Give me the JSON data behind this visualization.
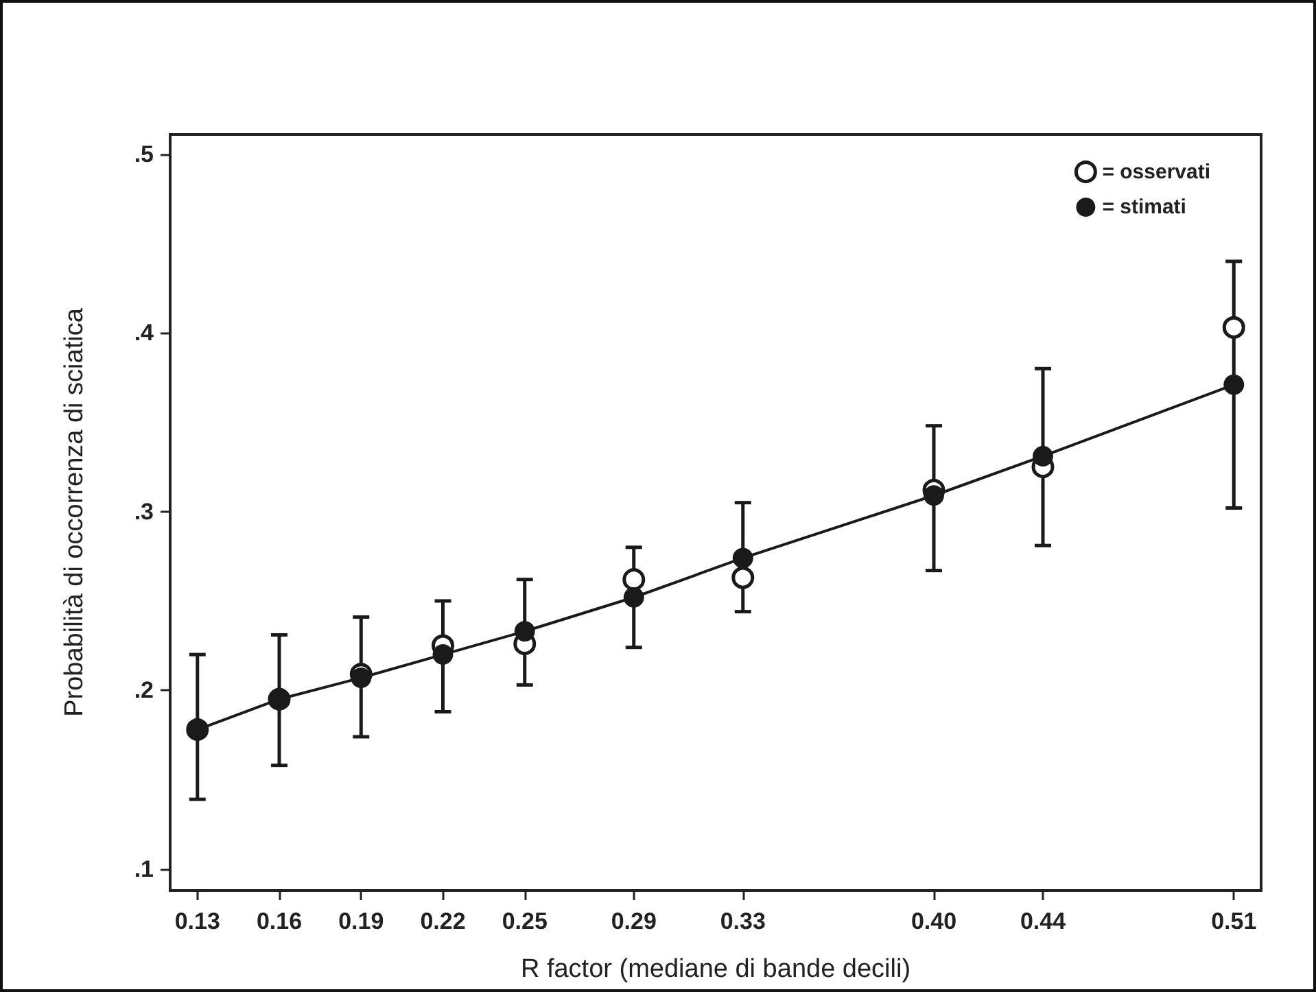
{
  "chart_data": {
    "type": "line",
    "xlabel": "R factor (mediane di bande decili)",
    "ylabel": "Probabilità di occorrenza di sciatica",
    "x": [
      0.13,
      0.16,
      0.19,
      0.22,
      0.25,
      0.29,
      0.33,
      0.4,
      0.44,
      0.51
    ],
    "series": [
      {
        "name": "= osservati",
        "type": "scatter",
        "color": "#1a1a1a",
        "values": [
          0.178,
          0.195,
          0.209,
          0.225,
          0.226,
          0.262,
          0.263,
          0.312,
          0.325,
          0.403
        ],
        "errors": [
          [
            0.139,
            0.22
          ],
          [
            0.158,
            0.231
          ],
          [
            0.174,
            0.241
          ],
          [
            0.188,
            0.25
          ],
          [
            0.203,
            0.262
          ],
          [
            0.224,
            0.28
          ],
          [
            0.244,
            0.305
          ],
          [
            0.267,
            0.348
          ],
          [
            0.281,
            0.38
          ],
          [
            0.302,
            0.44
          ]
        ]
      },
      {
        "name": "= stimati",
        "color": "#1a1a1a",
        "values": [
          0.178,
          0.195,
          0.207,
          0.22,
          0.233,
          0.252,
          0.274,
          0.309,
          0.331,
          0.371
        ]
      }
    ],
    "xlim": [
      0.12,
      0.52
    ],
    "xticks": [
      0.13,
      0.16,
      0.19,
      0.22,
      0.25,
      0.29,
      0.33,
      {
        "value": 0.4,
        "label": "0.40"
      },
      0.44,
      0.51
    ],
    "ylim": [
      0.088,
      0.511
    ],
    "yticks": [
      {
        "value": 0.1,
        "label": ".1"
      },
      {
        "value": 0.2,
        "label": ".2"
      },
      {
        "value": 0.3,
        "label": ".3"
      },
      {
        "value": 0.4,
        "label": ".4"
      },
      {
        "value": 0.5,
        "label": ".5"
      }
    ],
    "grid": false,
    "legend": "top right",
    "marker": "circle",
    "line_style": "solid"
  }
}
